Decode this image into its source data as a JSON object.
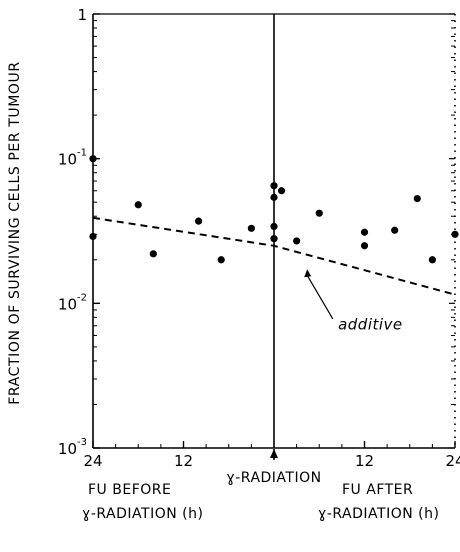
{
  "chart_data": {
    "type": "scatter",
    "ylabel": "FRACTION OF SURVIVING CELLS PER TUMOUR",
    "y_scale": "log",
    "ylim": [
      0.001,
      1
    ],
    "y_ticks": [
      {
        "value": 1,
        "base": "1",
        "exp": ""
      },
      {
        "value": 0.1,
        "base": "10",
        "exp": "-1"
      },
      {
        "value": 0.01,
        "base": "10",
        "exp": "-2"
      },
      {
        "value": 0.001,
        "base": "10",
        "exp": "-3"
      }
    ],
    "x_ticks": [
      {
        "value": -24,
        "label": "24"
      },
      {
        "value": -12,
        "label": "12"
      },
      {
        "value": 12,
        "label": "12"
      },
      {
        "value": 24,
        "label": "24"
      }
    ],
    "xlim": [
      -24,
      24
    ],
    "event_marker": {
      "x": 0,
      "label": "ɣ-RADIATION"
    },
    "points": [
      {
        "x": -24,
        "y": 0.1
      },
      {
        "x": -24,
        "y": 0.029
      },
      {
        "x": -18,
        "y": 0.048
      },
      {
        "x": -16,
        "y": 0.022
      },
      {
        "x": -10,
        "y": 0.037
      },
      {
        "x": -7,
        "y": 0.02
      },
      {
        "x": -3,
        "y": 0.033
      },
      {
        "x": 0,
        "y": 0.065
      },
      {
        "x": 0,
        "y": 0.054
      },
      {
        "x": 0,
        "y": 0.034
      },
      {
        "x": 0,
        "y": 0.028
      },
      {
        "x": 1,
        "y": 0.06
      },
      {
        "x": 3,
        "y": 0.027
      },
      {
        "x": 6,
        "y": 0.042
      },
      {
        "x": 12,
        "y": 0.031
      },
      {
        "x": 12,
        "y": 0.025
      },
      {
        "x": 16,
        "y": 0.032
      },
      {
        "x": 19,
        "y": 0.053
      },
      {
        "x": 21,
        "y": 0.02
      },
      {
        "x": 24,
        "y": 0.03
      }
    ],
    "additive_line": {
      "label": "additive",
      "x": [
        -24,
        0,
        24
      ],
      "y": [
        0.039,
        0.025,
        0.0115
      ]
    }
  },
  "captions": {
    "before": [
      "FU  BEFORE",
      "ɣ-RADIATION (h)"
    ],
    "after": [
      "FU  AFTER",
      "ɣ-RADIATION (h)"
    ]
  }
}
